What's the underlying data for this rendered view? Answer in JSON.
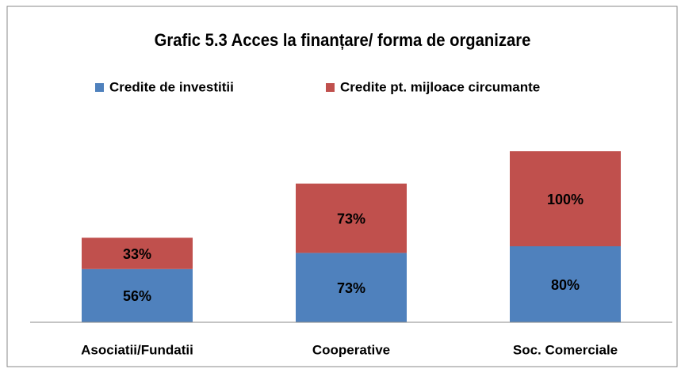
{
  "chart_data": {
    "type": "stacked_bar",
    "title": "Grafic 5.3 Acces la finanțare/ forma de organizare",
    "categories": [
      "Asociatii/Fundatii",
      "Cooperative",
      "Soc. Comerciale"
    ],
    "series": [
      {
        "name": "Credite de investitii",
        "color": "#4f81bd",
        "values": [
          56,
          73,
          80
        ],
        "value_labels": [
          "56%",
          "73%",
          "80%"
        ]
      },
      {
        "name": "Credite pt. mijloace circumante",
        "color": "#c0504d",
        "values": [
          33,
          73,
          100
        ],
        "value_labels": [
          "33%",
          "73%",
          "100%"
        ]
      }
    ],
    "ylim": [
      0,
      200
    ],
    "legend": "top"
  }
}
